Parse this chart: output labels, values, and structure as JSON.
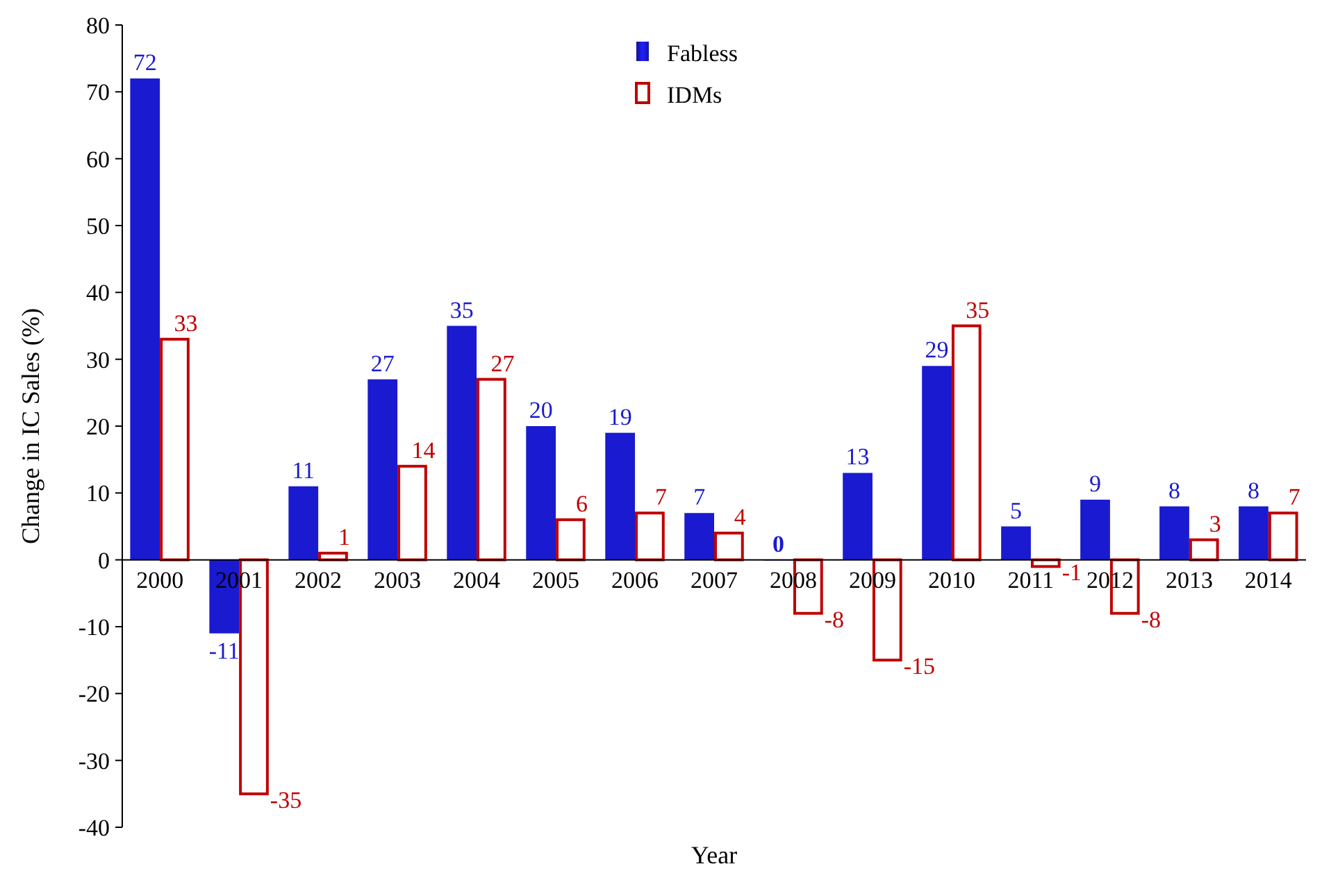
{
  "chart_data": {
    "type": "bar",
    "xlabel": "Year",
    "ylabel": "Change in IC Sales (%)",
    "categories": [
      "2000",
      "2001",
      "2002",
      "2003",
      "2004",
      "2005",
      "2006",
      "2007",
      "2008",
      "2009",
      "2010",
      "2011",
      "2012",
      "2013",
      "2014"
    ],
    "series": [
      {
        "name": "Fabless",
        "color": "#1a1ad0",
        "values": [
          72,
          -11,
          11,
          27,
          35,
          20,
          19,
          7,
          0,
          13,
          29,
          5,
          9,
          8,
          8
        ]
      },
      {
        "name": "IDMs",
        "color": "#c00000",
        "values": [
          33,
          -35,
          1,
          14,
          27,
          6,
          7,
          4,
          -8,
          -15,
          35,
          -1,
          -8,
          3,
          7
        ]
      }
    ],
    "ylim": [
      -40,
      80
    ],
    "yticks": [
      -40,
      -30,
      -20,
      -10,
      0,
      10,
      20,
      30,
      40,
      50,
      60,
      70,
      80
    ],
    "data_labels": true,
    "legend": "top",
    "grid": false
  }
}
